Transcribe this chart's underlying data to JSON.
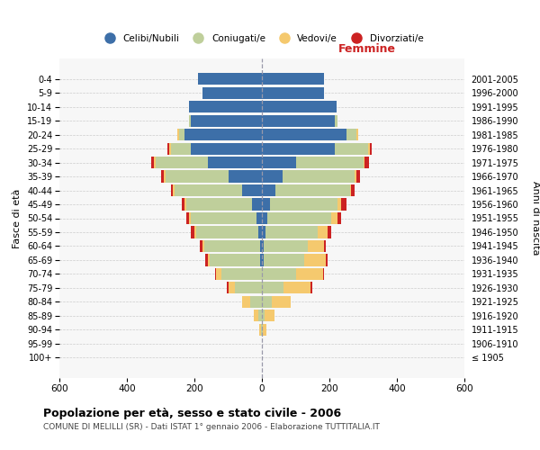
{
  "age_groups": [
    "100+",
    "95-99",
    "90-94",
    "85-89",
    "80-84",
    "75-79",
    "70-74",
    "65-69",
    "60-64",
    "55-59",
    "50-54",
    "45-49",
    "40-44",
    "35-39",
    "30-34",
    "25-29",
    "20-24",
    "15-19",
    "10-14",
    "5-9",
    "0-4"
  ],
  "birth_years": [
    "≤ 1905",
    "1906-1910",
    "1911-1915",
    "1916-1920",
    "1921-1925",
    "1926-1930",
    "1931-1935",
    "1936-1940",
    "1941-1945",
    "1946-1950",
    "1951-1955",
    "1956-1960",
    "1961-1965",
    "1966-1970",
    "1971-1975",
    "1976-1980",
    "1981-1985",
    "1986-1990",
    "1991-1995",
    "1996-2000",
    "2001-2005"
  ],
  "male": {
    "celibi": [
      0,
      0,
      0,
      0,
      0,
      0,
      0,
      5,
      5,
      10,
      15,
      30,
      60,
      100,
      160,
      210,
      230,
      210,
      215,
      175,
      190
    ],
    "coniugati": [
      0,
      0,
      2,
      10,
      35,
      80,
      120,
      150,
      165,
      185,
      195,
      195,
      200,
      185,
      155,
      60,
      15,
      5,
      0,
      0,
      0
    ],
    "vedovi": [
      0,
      0,
      5,
      15,
      25,
      20,
      15,
      5,
      5,
      5,
      5,
      5,
      5,
      5,
      5,
      5,
      5,
      0,
      0,
      0,
      0
    ],
    "divorziati": [
      0,
      0,
      0,
      0,
      0,
      5,
      5,
      8,
      8,
      12,
      8,
      8,
      5,
      8,
      8,
      5,
      0,
      0,
      0,
      0,
      0
    ]
  },
  "female": {
    "nubili": [
      0,
      0,
      0,
      0,
      0,
      0,
      0,
      5,
      5,
      10,
      15,
      25,
      40,
      60,
      100,
      215,
      250,
      215,
      220,
      185,
      185
    ],
    "coniugate": [
      0,
      0,
      2,
      8,
      30,
      65,
      100,
      120,
      130,
      155,
      190,
      200,
      220,
      215,
      200,
      100,
      30,
      10,
      0,
      0,
      0
    ],
    "vedove": [
      0,
      0,
      10,
      30,
      55,
      80,
      80,
      65,
      50,
      30,
      20,
      10,
      5,
      5,
      5,
      5,
      5,
      0,
      0,
      0,
      0
    ],
    "divorziate": [
      0,
      0,
      0,
      0,
      0,
      5,
      5,
      5,
      5,
      10,
      10,
      15,
      10,
      10,
      12,
      5,
      0,
      0,
      0,
      0,
      0
    ]
  },
  "colors": {
    "celibi": "#3d6fa8",
    "coniugati": "#bfcf9b",
    "vedovi": "#f5c96e",
    "divorziati": "#cc2222"
  },
  "xlim": 600,
  "title": "Popolazione per età, sesso e stato civile - 2006",
  "subtitle": "COMUNE DI MELILLI (SR) - Dati ISTAT 1° gennaio 2006 - Elaborazione TUTTITALIA.IT",
  "ylabel_left": "Fasce di età",
  "ylabel_right": "Anni di nascita",
  "xlabel_femmine": "Femmine",
  "legend_labels": [
    "Celibi/Nubili",
    "Coniugati/e",
    "Vedovi/e",
    "Divorziati/e"
  ],
  "bg_color": "#f7f7f7",
  "grid_color": "#cccccc"
}
